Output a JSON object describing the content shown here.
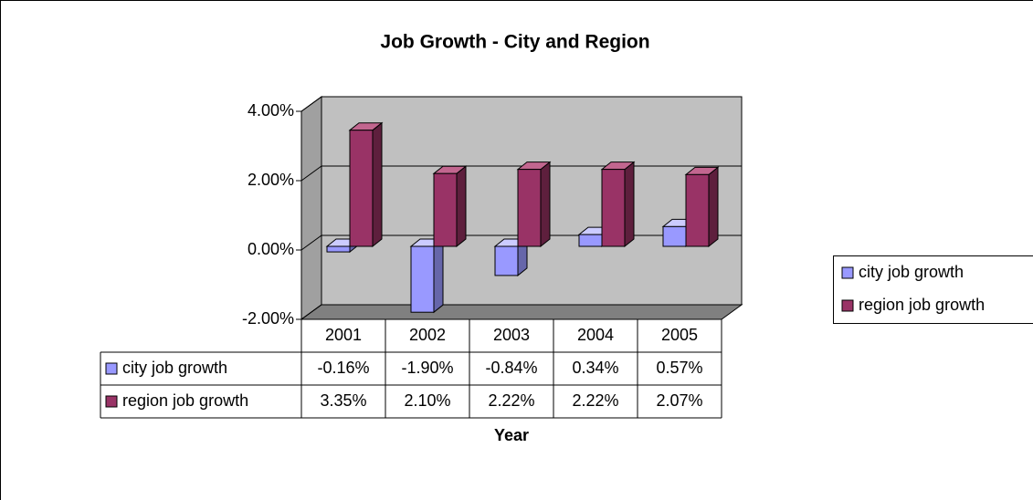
{
  "chart_data": {
    "type": "bar3d",
    "title": "Job Growth - City and Region",
    "x_label": "Year",
    "categories": [
      "2001",
      "2002",
      "2003",
      "2004",
      "2005"
    ],
    "series": [
      {
        "name": "city job growth",
        "color": "#9999ff",
        "values": [
          -0.16,
          -1.9,
          -0.84,
          0.34,
          0.57
        ],
        "value_labels": [
          "-0.16%",
          "-1.90%",
          "-0.84%",
          "0.34%",
          "0.57%"
        ]
      },
      {
        "name": "region job growth",
        "color": "#993366",
        "values": [
          3.35,
          2.1,
          2.22,
          2.22,
          2.07
        ],
        "value_labels": [
          "3.35%",
          "2.10%",
          "2.22%",
          "2.22%",
          "2.07%"
        ]
      }
    ],
    "ylim": [
      -2,
      4
    ],
    "yticks": [
      {
        "value": -2,
        "label": "-2.00%"
      },
      {
        "value": 0,
        "label": "0.00%"
      },
      {
        "value": 2,
        "label": "2.00%"
      },
      {
        "value": 4,
        "label": "4.00%"
      }
    ],
    "grid": true,
    "legend": "right",
    "data_table": true
  }
}
